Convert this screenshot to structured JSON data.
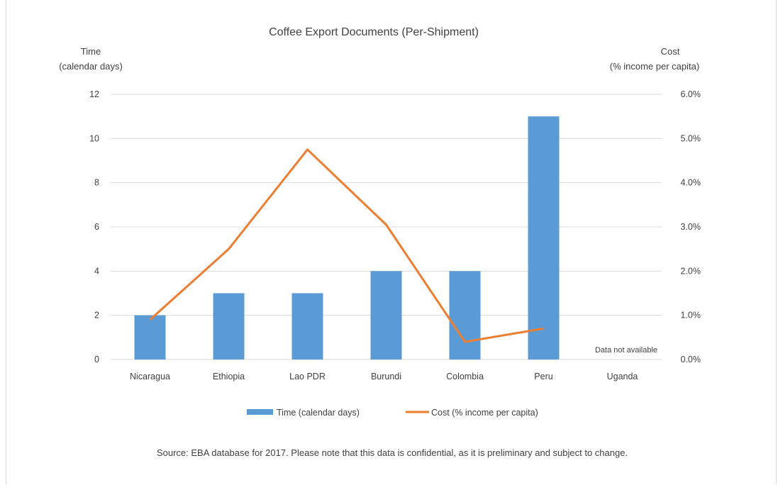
{
  "chart_data": {
    "type": "bar",
    "title": "Coffee Export Documents (Per-Shipment)",
    "ylabel_left": [
      "Time",
      "(calendar days)"
    ],
    "ylabel_right": [
      "Cost",
      "(% income per capita)"
    ],
    "categories": [
      "Nicaragua",
      "Ethiopia",
      "Lao PDR",
      "Burundi",
      "Colombia",
      "Peru",
      "Uganda"
    ],
    "ylim_left": [
      0,
      12
    ],
    "ylim_right": [
      0,
      6
    ],
    "left_ticks": [
      "0",
      "2",
      "4",
      "6",
      "8",
      "10",
      "12"
    ],
    "right_ticks": [
      "0.0%",
      "1.0%",
      "2.0%",
      "3.0%",
      "4.0%",
      "5.0%",
      "6.0%"
    ],
    "series": [
      {
        "name": "Time (calendar days)",
        "type": "bar",
        "axis": "left",
        "values": [
          2,
          3,
          3,
          4,
          4,
          11,
          null
        ]
      },
      {
        "name": "Cost (% income per capita)",
        "type": "line",
        "axis": "right",
        "values": [
          0.9,
          2.5,
          4.75,
          3.05,
          0.4,
          0.7,
          null
        ]
      }
    ],
    "annotations": [
      "Data not available"
    ],
    "grid": true,
    "legend": "bottom",
    "colors": {
      "bar": "#5b9bd5",
      "line": "#ed7d31",
      "grid": "#d9d9d9"
    }
  },
  "source": "Source: EBA database for 2017. Please note that this data is confidential, as it is preliminary and subject to change."
}
